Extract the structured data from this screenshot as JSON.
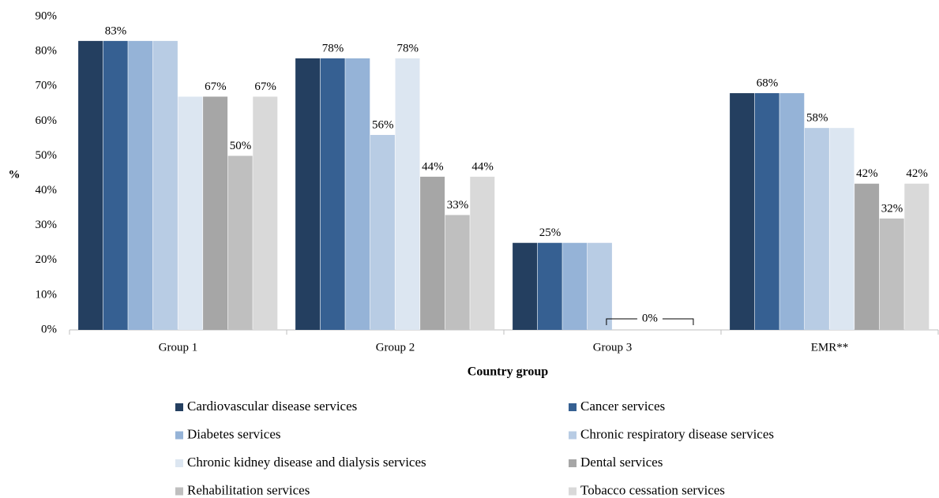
{
  "chart_data": {
    "type": "bar",
    "x_label": "Country group",
    "y_label": "%",
    "categories": [
      "Group 1",
      "Group 2",
      "Group 3",
      "EMR**"
    ],
    "series": [
      {
        "name": "Cardiovascular disease services",
        "color": "#243f60",
        "values": [
          83,
          78,
          25,
          68
        ],
        "value_labels": [
          null,
          null,
          null,
          null
        ]
      },
      {
        "name": "Cancer services",
        "color": "#366092",
        "values": [
          83,
          78,
          25,
          68
        ],
        "value_labels": [
          "83%",
          "78%",
          "25%",
          "68%"
        ]
      },
      {
        "name": "Diabetes services",
        "color": "#95b3d7",
        "values": [
          83,
          78,
          25,
          68
        ],
        "value_labels": [
          null,
          null,
          null,
          null
        ]
      },
      {
        "name": "Chronic respiratory disease services",
        "color": "#b8cce4",
        "values": [
          83,
          56,
          25,
          58
        ],
        "value_labels": [
          null,
          "56%",
          null,
          "58%"
        ]
      },
      {
        "name": "Chronic kidney disease and dialysis services",
        "color": "#dce6f1",
        "values": [
          67,
          78,
          0,
          58
        ],
        "value_labels": [
          null,
          "78%",
          null,
          null
        ]
      },
      {
        "name": "Dental services",
        "color": "#a6a6a6",
        "values": [
          67,
          44,
          0,
          42
        ],
        "value_labels": [
          "67%",
          "44%",
          "0%",
          "42%"
        ]
      },
      {
        "name": "Rehabilitation services",
        "color": "#bfbfbf",
        "values": [
          50,
          33,
          0,
          32
        ],
        "value_labels": [
          "50%",
          "33%",
          null,
          "32%"
        ]
      },
      {
        "name": "Tobacco cessation services",
        "color": "#d9d9d9",
        "values": [
          67,
          44,
          0,
          42
        ],
        "value_labels": [
          "67%",
          "44%",
          null,
          "42%"
        ]
      }
    ],
    "ylim": [
      0,
      90
    ],
    "yticks": [
      {
        "value": 0,
        "label": "0%"
      },
      {
        "value": 10,
        "label": "10%"
      },
      {
        "value": 20,
        "label": "20%"
      },
      {
        "value": 30,
        "label": "30%"
      },
      {
        "value": 40,
        "label": "40%"
      },
      {
        "value": 50,
        "label": "50%"
      },
      {
        "value": 60,
        "label": "60%"
      },
      {
        "value": 70,
        "label": "70%"
      },
      {
        "value": 80,
        "label": "80%"
      },
      {
        "value": 90,
        "label": "90%"
      }
    ],
    "grid": false,
    "legend": "bottom"
  }
}
